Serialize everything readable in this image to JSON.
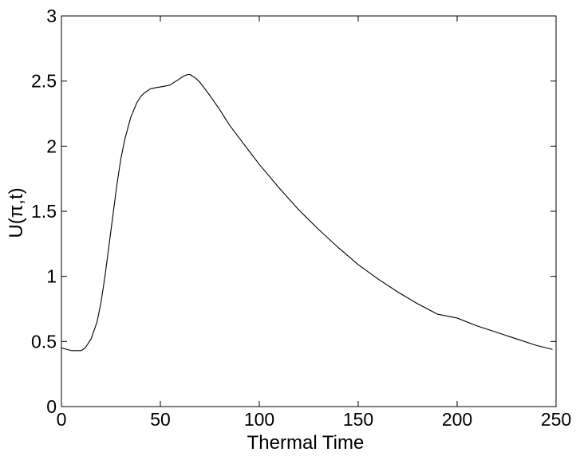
{
  "chart_data": {
    "type": "line",
    "xlabel": "Thermal Time",
    "ylabel": "U(π,t)",
    "xlim": [
      0,
      250
    ],
    "ylim": [
      0,
      3
    ],
    "xticks": [
      0,
      50,
      100,
      150,
      200,
      250
    ],
    "yticks": [
      0,
      0.5,
      1,
      1.5,
      2,
      2.5,
      3
    ],
    "xtick_labels": [
      "0",
      "50",
      "100",
      "150",
      "200",
      "250"
    ],
    "ytick_labels": [
      "0",
      "0.5",
      "1",
      "1.5",
      "2",
      "2.5",
      "3"
    ],
    "grid": false,
    "legend": "none",
    "line_color": "#000000",
    "series": [
      {
        "x": [
          0,
          5,
          10,
          12,
          15,
          18,
          20,
          22,
          25,
          28,
          30,
          32,
          35,
          38,
          40,
          42,
          45,
          48,
          50,
          52,
          55,
          58,
          60,
          62,
          64,
          65,
          66,
          68,
          70,
          75,
          80,
          85,
          90,
          95,
          100,
          110,
          120,
          130,
          140,
          150,
          160,
          170,
          180,
          190,
          200,
          210,
          220,
          230,
          240,
          248
        ],
        "y": [
          0.45,
          0.43,
          0.43,
          0.45,
          0.52,
          0.65,
          0.8,
          1.0,
          1.35,
          1.7,
          1.9,
          2.05,
          2.22,
          2.33,
          2.38,
          2.41,
          2.44,
          2.45,
          2.455,
          2.46,
          2.47,
          2.5,
          2.52,
          2.54,
          2.55,
          2.55,
          2.54,
          2.52,
          2.49,
          2.39,
          2.28,
          2.16,
          2.06,
          1.96,
          1.86,
          1.68,
          1.51,
          1.36,
          1.22,
          1.09,
          0.98,
          0.88,
          0.79,
          0.71,
          0.68,
          0.62,
          0.57,
          0.52,
          0.47,
          0.44
        ]
      }
    ]
  }
}
